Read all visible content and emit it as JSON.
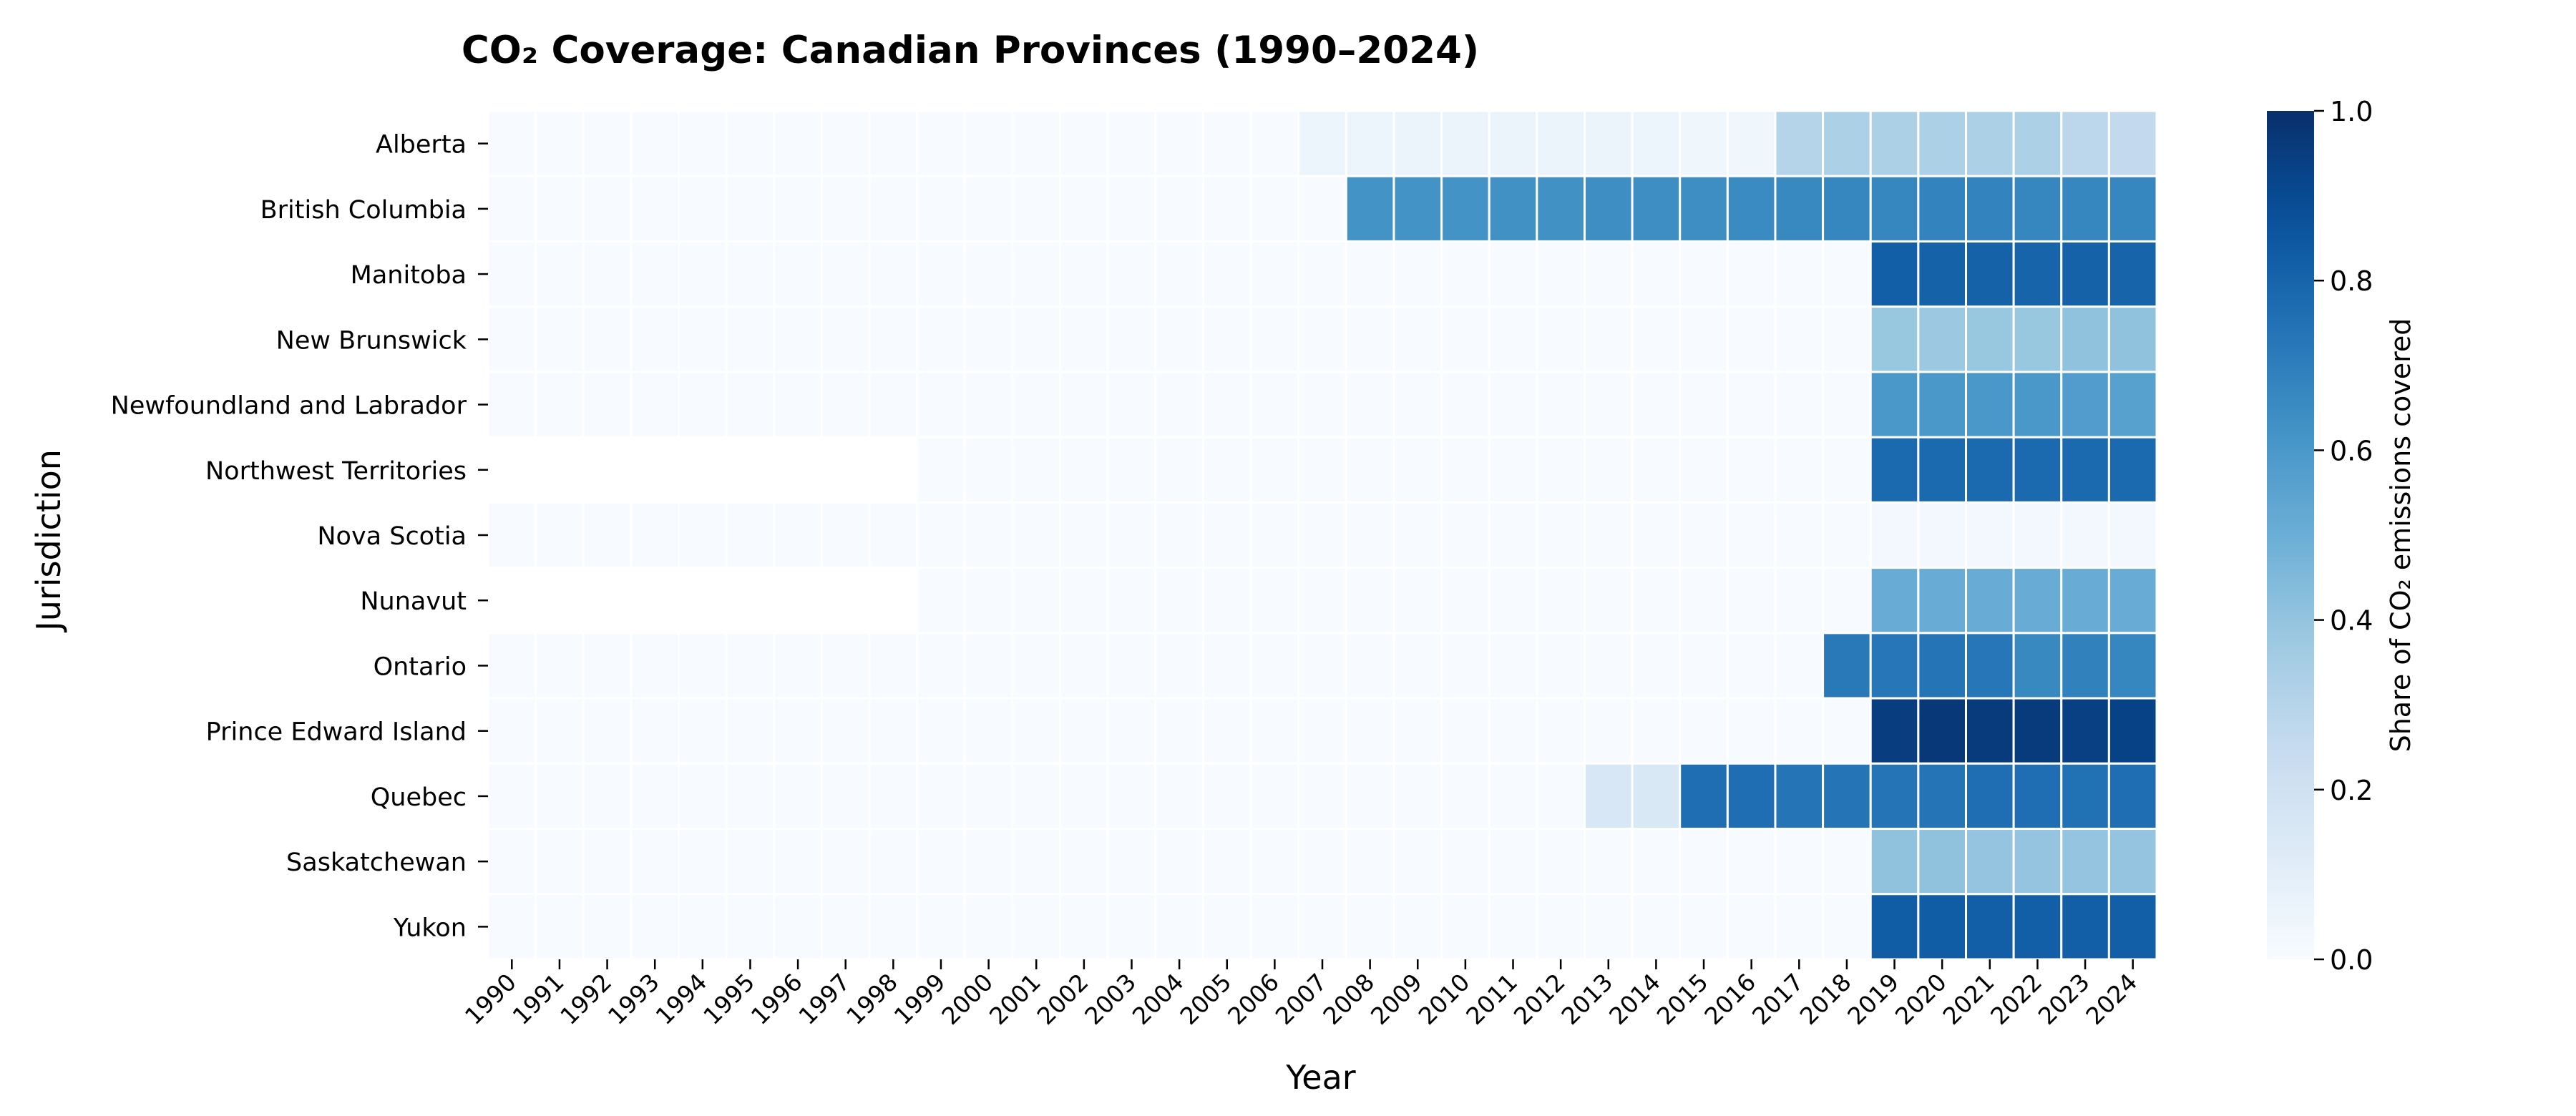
{
  "chart_data": {
    "type": "heatmap",
    "title": "CO₂ Coverage: Canadian Provinces (1990–2024)",
    "xlabel": "Year",
    "ylabel": "Jurisdiction",
    "x": [
      "1990",
      "1991",
      "1992",
      "1993",
      "1994",
      "1995",
      "1996",
      "1997",
      "1998",
      "1999",
      "2000",
      "2001",
      "2002",
      "2003",
      "2004",
      "2005",
      "2006",
      "2007",
      "2008",
      "2009",
      "2010",
      "2011",
      "2012",
      "2013",
      "2014",
      "2015",
      "2016",
      "2017",
      "2018",
      "2019",
      "2020",
      "2021",
      "2022",
      "2023",
      "2024"
    ],
    "y": [
      "Alberta",
      "British Columbia",
      "Manitoba",
      "New Brunswick",
      "Newfoundland and Labrador",
      "Northwest Territories",
      "Nova Scotia",
      "Nunavut",
      "Ontario",
      "Prince Edward Island",
      "Quebec",
      "Saskatchewan",
      "Yukon"
    ],
    "values": [
      [
        0,
        0,
        0,
        0,
        0,
        0,
        0,
        0,
        0,
        0,
        0,
        0,
        0,
        0,
        0,
        0,
        0,
        0.05,
        0.05,
        0.06,
        0.06,
        0.06,
        0.06,
        0.06,
        0.05,
        0.04,
        0.04,
        0.3,
        0.33,
        0.33,
        0.33,
        0.33,
        0.33,
        0.28,
        0.26
      ],
      [
        0,
        0,
        0,
        0,
        0,
        0,
        0,
        0,
        0,
        0,
        0,
        0,
        0,
        0,
        0,
        0,
        0,
        0,
        0.62,
        0.62,
        0.62,
        0.63,
        0.63,
        0.64,
        0.64,
        0.64,
        0.65,
        0.66,
        0.67,
        0.67,
        0.68,
        0.68,
        0.67,
        0.67,
        0.67
      ],
      [
        0,
        0,
        0,
        0,
        0,
        0,
        0,
        0,
        0,
        0,
        0,
        0,
        0,
        0,
        0,
        0,
        0,
        0,
        0,
        0,
        0,
        0,
        0,
        0,
        0,
        0,
        0,
        0,
        0,
        0.82,
        0.81,
        0.81,
        0.8,
        0.81,
        0.8
      ],
      [
        0,
        0,
        0,
        0,
        0,
        0,
        0,
        0,
        0,
        0,
        0,
        0,
        0,
        0,
        0,
        0,
        0,
        0,
        0,
        0,
        0,
        0,
        0,
        0,
        0,
        0,
        0,
        0,
        0,
        0.39,
        0.38,
        0.39,
        0.39,
        0.41,
        0.41
      ],
      [
        0,
        0,
        0,
        0,
        0,
        0,
        0,
        0,
        0,
        0,
        0,
        0,
        0,
        0,
        0,
        0,
        0,
        0,
        0,
        0,
        0,
        0,
        0,
        0,
        0,
        0,
        0,
        0,
        0,
        0.6,
        0.6,
        0.6,
        0.6,
        0.58,
        0.56
      ],
      [
        null,
        null,
        null,
        null,
        null,
        null,
        null,
        null,
        null,
        0,
        0,
        0,
        0,
        0,
        0,
        0,
        0,
        0,
        0,
        0,
        0,
        0,
        0,
        0,
        0,
        0,
        0,
        0,
        0,
        0.78,
        0.78,
        0.78,
        0.78,
        0.78,
        0.78
      ],
      [
        0,
        0,
        0,
        0,
        0,
        0,
        0,
        0,
        0,
        0,
        0,
        0,
        0,
        0,
        0,
        0,
        0,
        0,
        0,
        0,
        0,
        0,
        0,
        0,
        0,
        0,
        0,
        0,
        0,
        0.02,
        0.02,
        0.02,
        0.02,
        0.02,
        0.02
      ],
      [
        null,
        null,
        null,
        null,
        null,
        null,
        null,
        null,
        null,
        0,
        0,
        0,
        0,
        0,
        0,
        0,
        0,
        0,
        0,
        0,
        0,
        0,
        0,
        0,
        0,
        0,
        0,
        0,
        0,
        0.51,
        0.51,
        0.51,
        0.51,
        0.51,
        0.51
      ],
      [
        0,
        0,
        0,
        0,
        0,
        0,
        0,
        0,
        0,
        0,
        0,
        0,
        0,
        0,
        0,
        0,
        0,
        0,
        0,
        0,
        0,
        0,
        0,
        0,
        0,
        0,
        0,
        0,
        0.72,
        0.73,
        0.74,
        0.73,
        0.66,
        0.69,
        0.67
      ],
      [
        0,
        0,
        0,
        0,
        0,
        0,
        0,
        0,
        0,
        0,
        0,
        0,
        0,
        0,
        0,
        0,
        0,
        0,
        0,
        0,
        0,
        0,
        0,
        0,
        0,
        0,
        0,
        0,
        0,
        0.95,
        0.97,
        0.96,
        0.96,
        0.94,
        0.93
      ],
      [
        0,
        0,
        0,
        0,
        0,
        0,
        0,
        0,
        0,
        0,
        0,
        0,
        0,
        0,
        0,
        0,
        0,
        0,
        0,
        0,
        0,
        0,
        0,
        0.16,
        0.15,
        0.76,
        0.76,
        0.74,
        0.74,
        0.74,
        0.74,
        0.76,
        0.76,
        0.75,
        0.76
      ],
      [
        0,
        0,
        0,
        0,
        0,
        0,
        0,
        0,
        0,
        0,
        0,
        0,
        0,
        0,
        0,
        0,
        0,
        0,
        0,
        0,
        0,
        0,
        0,
        0,
        0,
        0,
        0,
        0,
        0,
        0.41,
        0.41,
        0.4,
        0.4,
        0.4,
        0.4
      ],
      [
        0,
        0,
        0,
        0,
        0,
        0,
        0,
        0,
        0,
        0,
        0,
        0,
        0,
        0,
        0,
        0,
        0,
        0,
        0,
        0,
        0,
        0,
        0,
        0,
        0,
        0,
        0,
        0,
        0,
        0.83,
        0.83,
        0.82,
        0.82,
        0.82,
        0.82
      ]
    ],
    "colorbar": {
      "label": "Share of CO₂ emissions covered",
      "ticks": [
        "0.0",
        "0.2",
        "0.4",
        "0.6",
        "0.8",
        "1.0"
      ],
      "range": [
        0,
        1
      ],
      "colormap": "Blues"
    },
    "grid": false,
    "missing_value_color": "#ffffff"
  }
}
